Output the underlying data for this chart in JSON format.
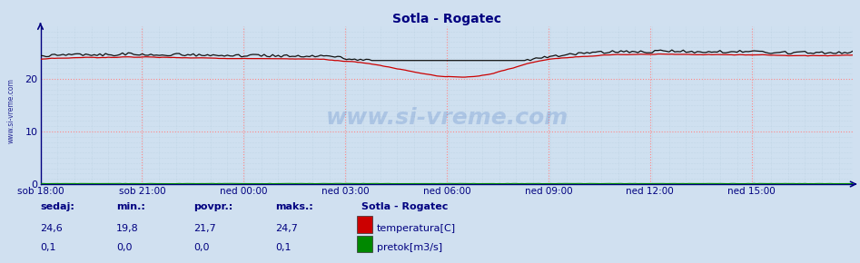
{
  "title": "Sotla - Rogatec",
  "title_color": "#000080",
  "title_fontsize": 10,
  "bg_color": "#cfe0f0",
  "grid_color_major_v": "#ff9999",
  "grid_color_major_h": "#ff9999",
  "grid_color_minor": "#c8d8e8",
  "ylim": [
    0,
    30
  ],
  "yticks": [
    0,
    10,
    20
  ],
  "xlabel_color": "#000080",
  "ylabel_color": "#000080",
  "axis_color": "#000080",
  "xtick_labels": [
    "sob 18:00",
    "sob 21:00",
    "ned 00:00",
    "ned 03:00",
    "ned 06:00",
    "ned 09:00",
    "ned 12:00",
    "ned 15:00"
  ],
  "n_points": 288,
  "temp_color": "#cc0000",
  "black_line_color": "#111111",
  "flow_color": "#008800",
  "watermark": "www.si-vreme.com",
  "watermark_color": "#000080",
  "left_label": "www.si-vreme.com",
  "left_label_color": "#000080",
  "legend_title": "Sotla - Rogatec",
  "legend_items": [
    "temperatura[C]",
    "pretok[m3/s]"
  ],
  "legend_colors": [
    "#cc0000",
    "#008800"
  ],
  "stats_headers": [
    "sedaj:",
    "min.:",
    "povpr.:",
    "maks.:"
  ],
  "stats_temp": [
    "24,6",
    "19,8",
    "21,7",
    "24,7"
  ],
  "stats_flow": [
    "0,1",
    "0,0",
    "0,0",
    "0,1"
  ],
  "stats_color": "#000080",
  "footer_bg": "#d0e0f0"
}
